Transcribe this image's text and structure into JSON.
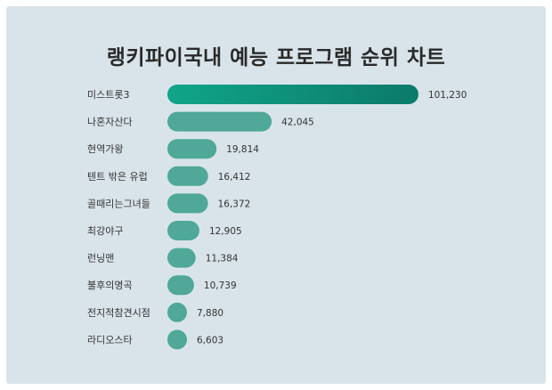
{
  "chart_data": {
    "type": "bar",
    "orientation": "horizontal",
    "title": "랭키파이국내 예능 프로그램 순위 차트",
    "categories": [
      "미스트롯3",
      "나혼자산다",
      "현역가왕",
      "텐트 밖은 유럽",
      "골때리는그녀들",
      "최강야구",
      "런닝맨",
      "불후의명곡",
      "전지적참견시점",
      "라디오스타"
    ],
    "values": [
      101230,
      42045,
      19814,
      16412,
      16372,
      12905,
      11384,
      10739,
      7880,
      6603
    ],
    "value_labels": [
      "101,230",
      "42,045",
      "19,814",
      "16,412",
      "16,372",
      "12,905",
      "11,384",
      "10,739",
      "7,880",
      "6,603"
    ],
    "colors": {
      "top_bar_start": "#10a589",
      "top_bar_end": "#0c7a6a",
      "bar": "#4fa898",
      "background": "#d9e4ea"
    },
    "grid": false,
    "legend": "none"
  }
}
